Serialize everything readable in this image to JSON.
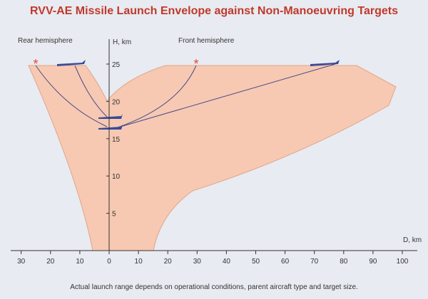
{
  "header": {
    "title": "RVV-AE Missile Launch Envelope against Non-Manoeuvring Targets"
  },
  "labels": {
    "rear": "Rear hemisphere",
    "front": "Front hemisphere"
  },
  "axes": {
    "y": {
      "title": "H, km",
      "ticks": [
        5,
        10,
        15,
        20,
        25
      ]
    },
    "x": {
      "title": "D, km",
      "ticks": [
        {
          "value": -30,
          "label": "30"
        },
        {
          "value": -20,
          "label": "20"
        },
        {
          "value": -10,
          "label": "10"
        },
        0,
        10,
        20,
        30,
        40,
        50,
        60,
        70,
        80,
        90,
        100
      ]
    }
  },
  "footnote": "Actual launch range depends on operational conditions, parent aircraft type and target size."
}
